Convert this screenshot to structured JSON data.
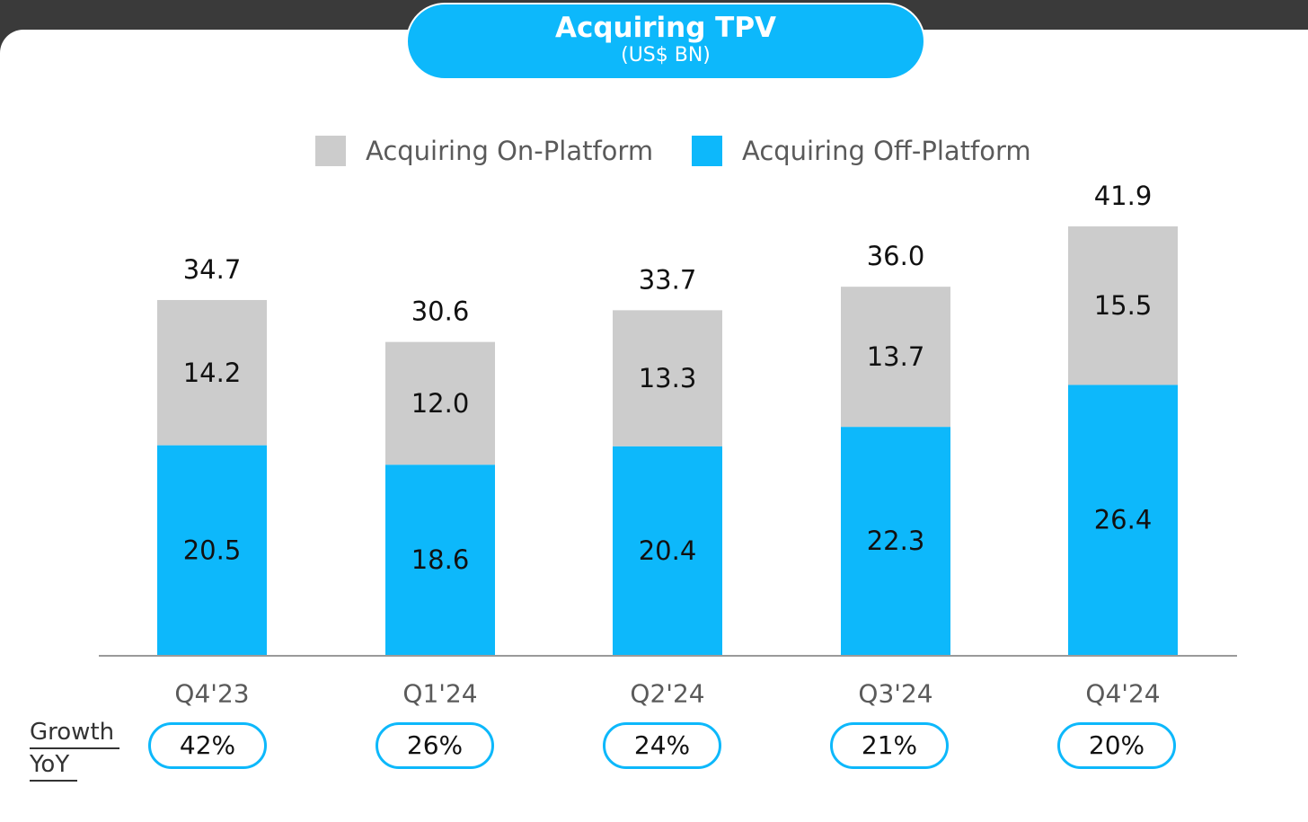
{
  "title": "Acquiring TPV",
  "subtitle": "(US$ BN)",
  "legend": [
    {
      "label": "Acquiring On-Platform",
      "color": "#cccccc"
    },
    {
      "label": "Acquiring Off-Platform",
      "color": "#0db8fb"
    }
  ],
  "growth_label_line1": "Growth",
  "growth_label_line2": "YoY",
  "growth": [
    "42%",
    "26%",
    "24%",
    "21%",
    "20%"
  ],
  "chart_data": {
    "type": "bar",
    "stacked": true,
    "categories": [
      "Q4'23",
      "Q1'24",
      "Q2'24",
      "Q3'24",
      "Q4'24"
    ],
    "series": [
      {
        "name": "Acquiring Off-Platform",
        "values": [
          20.5,
          18.6,
          20.4,
          22.3,
          26.4
        ],
        "color": "#0db8fb"
      },
      {
        "name": "Acquiring On-Platform",
        "values": [
          14.2,
          12.0,
          13.3,
          13.7,
          15.5
        ],
        "color": "#cccccc"
      }
    ],
    "totals": [
      "34.7",
      "30.6",
      "33.7",
      "36.0",
      "41.9"
    ],
    "segment_labels": {
      "off": [
        "20.5",
        "18.6",
        "20.4",
        "22.3",
        "26.4"
      ],
      "on": [
        "14.2",
        "12.0",
        "13.3",
        "13.7",
        "15.5"
      ]
    },
    "ylim": [
      0,
      41.9
    ],
    "grid": false,
    "legend_position": "top"
  }
}
